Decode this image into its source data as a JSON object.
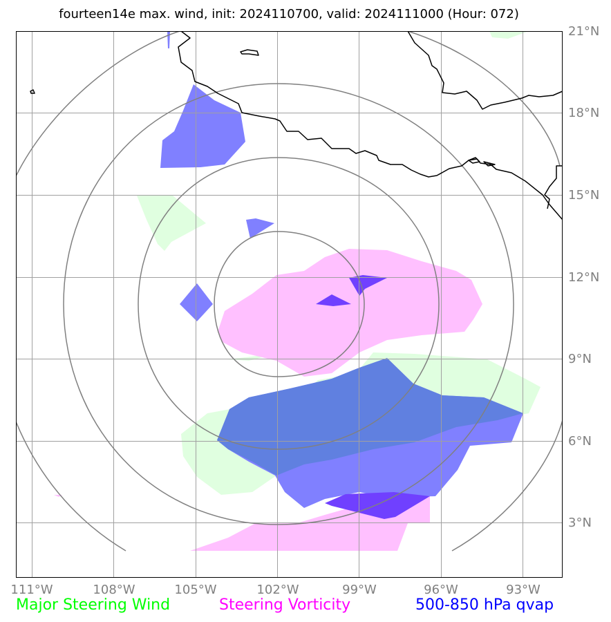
{
  "title": "fourteen14e max. wind, init: 2024110700, valid: 2024111000 (Hour: 072)",
  "lat_labels": [
    "21°N",
    "18°N",
    "15°N",
    "12°N",
    "9°N",
    "6°N",
    "3°N"
  ],
  "lon_labels": [
    "111°W",
    "108°W",
    "105°W",
    "102°W",
    "99°W",
    "96°W",
    "93°W"
  ],
  "legend": [
    {
      "label": "Major Steering Wind",
      "color": "#00ff00"
    },
    {
      "label": "Steering Vorticity",
      "color": "#ff00ff"
    },
    {
      "label": "500-850 hPa qvap",
      "color": "#0000ff"
    }
  ],
  "layer_colors": {
    "steering_wind_fill": "#e0ffe0",
    "vorticity_fill": "#ffc0ff",
    "qvap_fill": "#8080ff",
    "qvap_overlap_fill": "#6080e0",
    "qvap_strong_fill": "#7040ff",
    "range_rings": "#808080",
    "coastline": "#000000",
    "gridlines": "#a0a0a0"
  }
}
